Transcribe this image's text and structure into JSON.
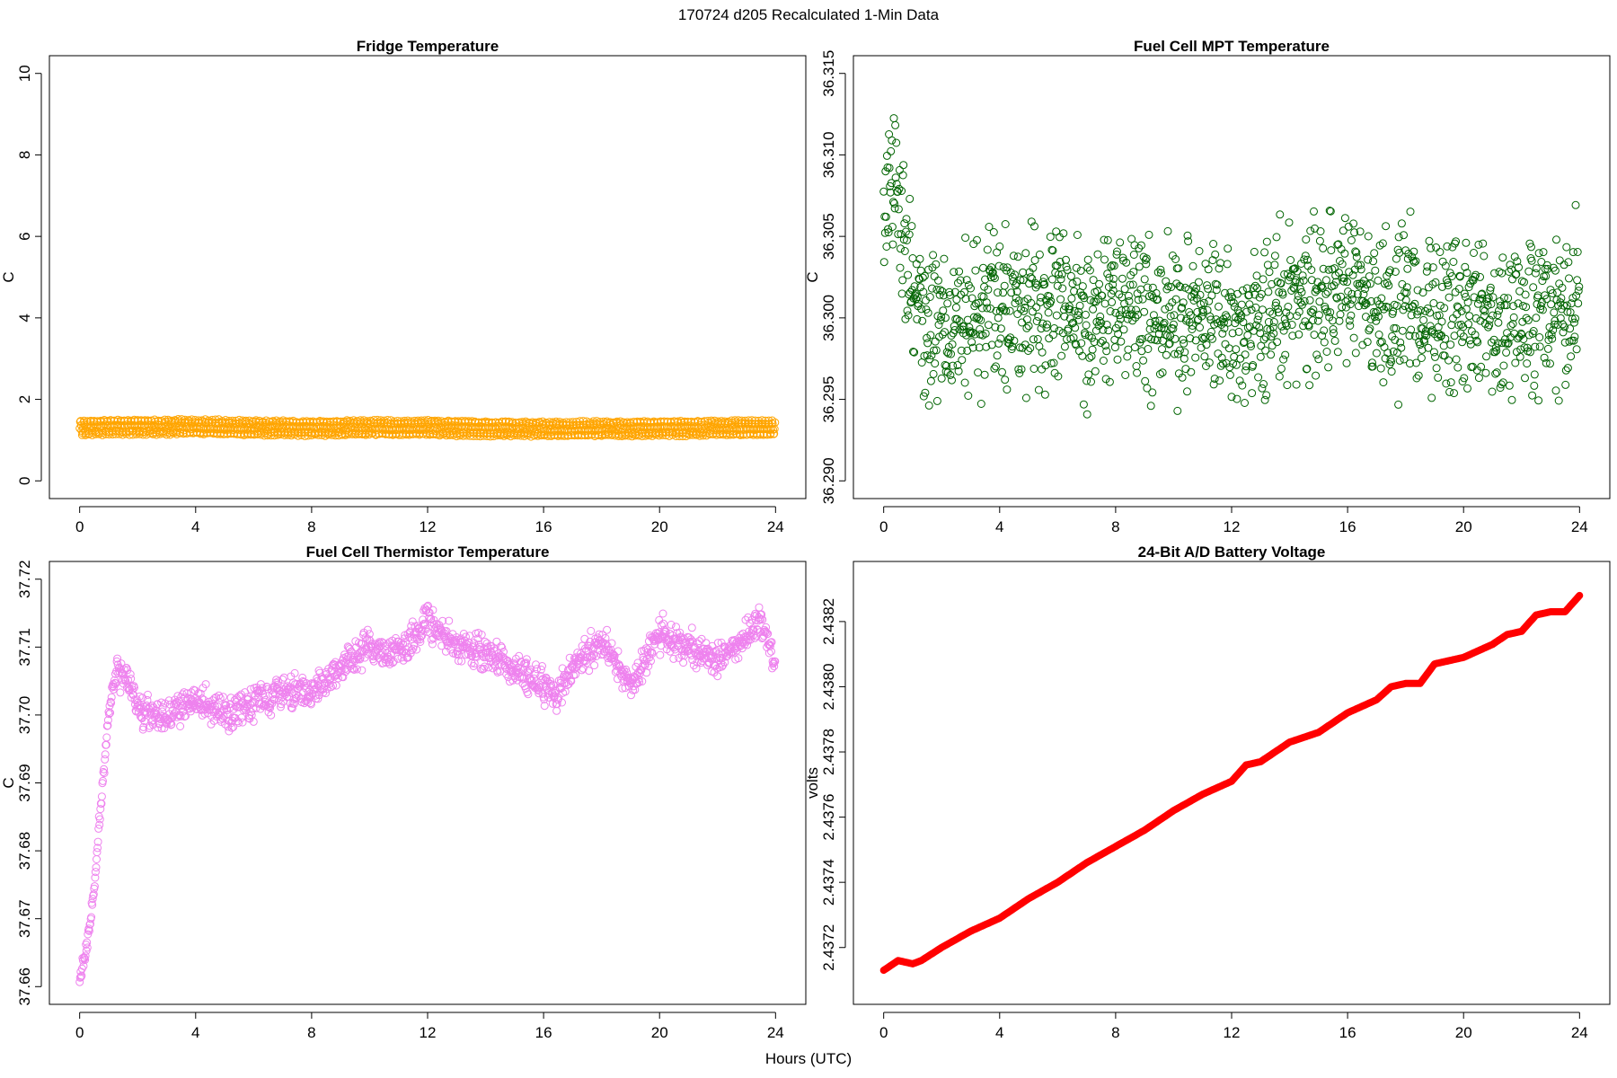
{
  "figure": {
    "title": "170724   d205   Recalculated 1-Min Data",
    "xlabel": "Hours (UTC)"
  },
  "chart_data": [
    {
      "type": "scatter",
      "title": "Fridge Temperature",
      "ylabel": "C",
      "color": "#FFA500",
      "xlim": [
        0,
        24
      ],
      "ylim": [
        0,
        10
      ],
      "xticks": [
        "0",
        "4",
        "8",
        "12",
        "16",
        "20",
        "24"
      ],
      "yticks": [
        "0",
        "2",
        "4",
        "6",
        "8",
        "10"
      ],
      "x": [
        0,
        1,
        2,
        3,
        4,
        5,
        6,
        7,
        8,
        9,
        10,
        11,
        12,
        13,
        14,
        15,
        16,
        17,
        18,
        19,
        20,
        21,
        22,
        23,
        24
      ],
      "y": [
        1.3,
        1.32,
        1.32,
        1.32,
        1.33,
        1.31,
        1.3,
        1.3,
        1.29,
        1.3,
        1.31,
        1.3,
        1.31,
        1.29,
        1.28,
        1.28,
        1.27,
        1.27,
        1.28,
        1.28,
        1.29,
        1.29,
        1.3,
        1.3,
        1.3
      ],
      "band": [
        1.13,
        1.5
      ]
    },
    {
      "type": "scatter",
      "title": "Fuel Cell MPT Temperature",
      "ylabel": "C",
      "color": "#006400",
      "xlim": [
        0,
        24
      ],
      "ylim": [
        36.29,
        36.315
      ],
      "xticks": [
        "0",
        "4",
        "8",
        "12",
        "16",
        "20",
        "24"
      ],
      "yticks": [
        "36.290",
        "36.295",
        "36.300",
        "36.305",
        "36.310",
        "36.315"
      ],
      "x": [
        0,
        0.25,
        0.5,
        0.75,
        1,
        1.5,
        2,
        3,
        4,
        5,
        6,
        7,
        8,
        9,
        10,
        11,
        12,
        13,
        14,
        15,
        16,
        17,
        18,
        19,
        20,
        21,
        22,
        23,
        24
      ],
      "y": [
        36.306,
        36.308,
        36.307,
        36.305,
        36.302,
        36.299,
        36.3,
        36.3,
        36.301,
        36.301,
        36.301,
        36.3,
        36.301,
        36.3,
        36.3,
        36.3,
        36.299,
        36.3,
        36.301,
        36.301,
        36.302,
        36.301,
        36.301,
        36.3,
        36.3,
        36.3,
        36.3,
        36.3,
        36.301
      ],
      "spread": 0.0042
    },
    {
      "type": "scatter",
      "title": "Fuel Cell Thermistor Temperature",
      "ylabel": "C",
      "color": "#EE82EE",
      "xlim": [
        0,
        24
      ],
      "ylim": [
        37.66,
        37.72
      ],
      "xticks": [
        "0",
        "4",
        "8",
        "12",
        "16",
        "20",
        "24"
      ],
      "yticks": [
        "37.66",
        "37.67",
        "37.68",
        "37.69",
        "37.70",
        "37.71",
        "37.72"
      ],
      "x": [
        0,
        0.25,
        0.5,
        0.75,
        1,
        1.25,
        1.5,
        2,
        3,
        4,
        5,
        6,
        7,
        8,
        9,
        10,
        11,
        12,
        13,
        14,
        15,
        16,
        16.5,
        17,
        18,
        19,
        20,
        21,
        22,
        23,
        23.5,
        24
      ],
      "y": [
        37.661,
        37.666,
        37.674,
        37.688,
        37.7,
        37.706,
        37.707,
        37.701,
        37.7,
        37.702,
        37.7,
        37.702,
        37.704,
        37.703,
        37.707,
        37.71,
        37.709,
        37.714,
        37.71,
        37.709,
        37.707,
        37.704,
        37.703,
        37.707,
        37.711,
        37.704,
        37.712,
        37.71,
        37.708,
        37.712,
        37.714,
        37.707
      ],
      "spread": 0.0022
    },
    {
      "type": "line",
      "title": "24-Bit A/D Battery Voltage",
      "ylabel": "volts",
      "color": "#FF0000",
      "xlim": [
        0,
        24
      ],
      "ylim": [
        2.43708,
        2.43833
      ],
      "xticks": [
        "0",
        "4",
        "8",
        "12",
        "16",
        "20",
        "24"
      ],
      "yticks": [
        "2.4372",
        "2.4374",
        "2.4376",
        "2.4378",
        "2.4380",
        "2.4382"
      ],
      "x": [
        0,
        0.5,
        1,
        1.3,
        2,
        3,
        4,
        5,
        6,
        7,
        8,
        9,
        10,
        11,
        11.5,
        12,
        12.5,
        13,
        14,
        15,
        16,
        17,
        17.5,
        18,
        18.5,
        19,
        20,
        21,
        21.5,
        22,
        22.5,
        23,
        23.5,
        24
      ],
      "y": [
        2.43713,
        2.43716,
        2.43715,
        2.43716,
        2.4372,
        2.43725,
        2.43729,
        2.43735,
        2.4374,
        2.43746,
        2.43751,
        2.43756,
        2.43762,
        2.43767,
        2.43769,
        2.43771,
        2.43776,
        2.43777,
        2.43783,
        2.43786,
        2.43792,
        2.43796,
        2.438,
        2.43801,
        2.43801,
        2.43807,
        2.43809,
        2.43813,
        2.43816,
        2.43817,
        2.43822,
        2.43823,
        2.43823,
        2.43828
      ]
    }
  ]
}
